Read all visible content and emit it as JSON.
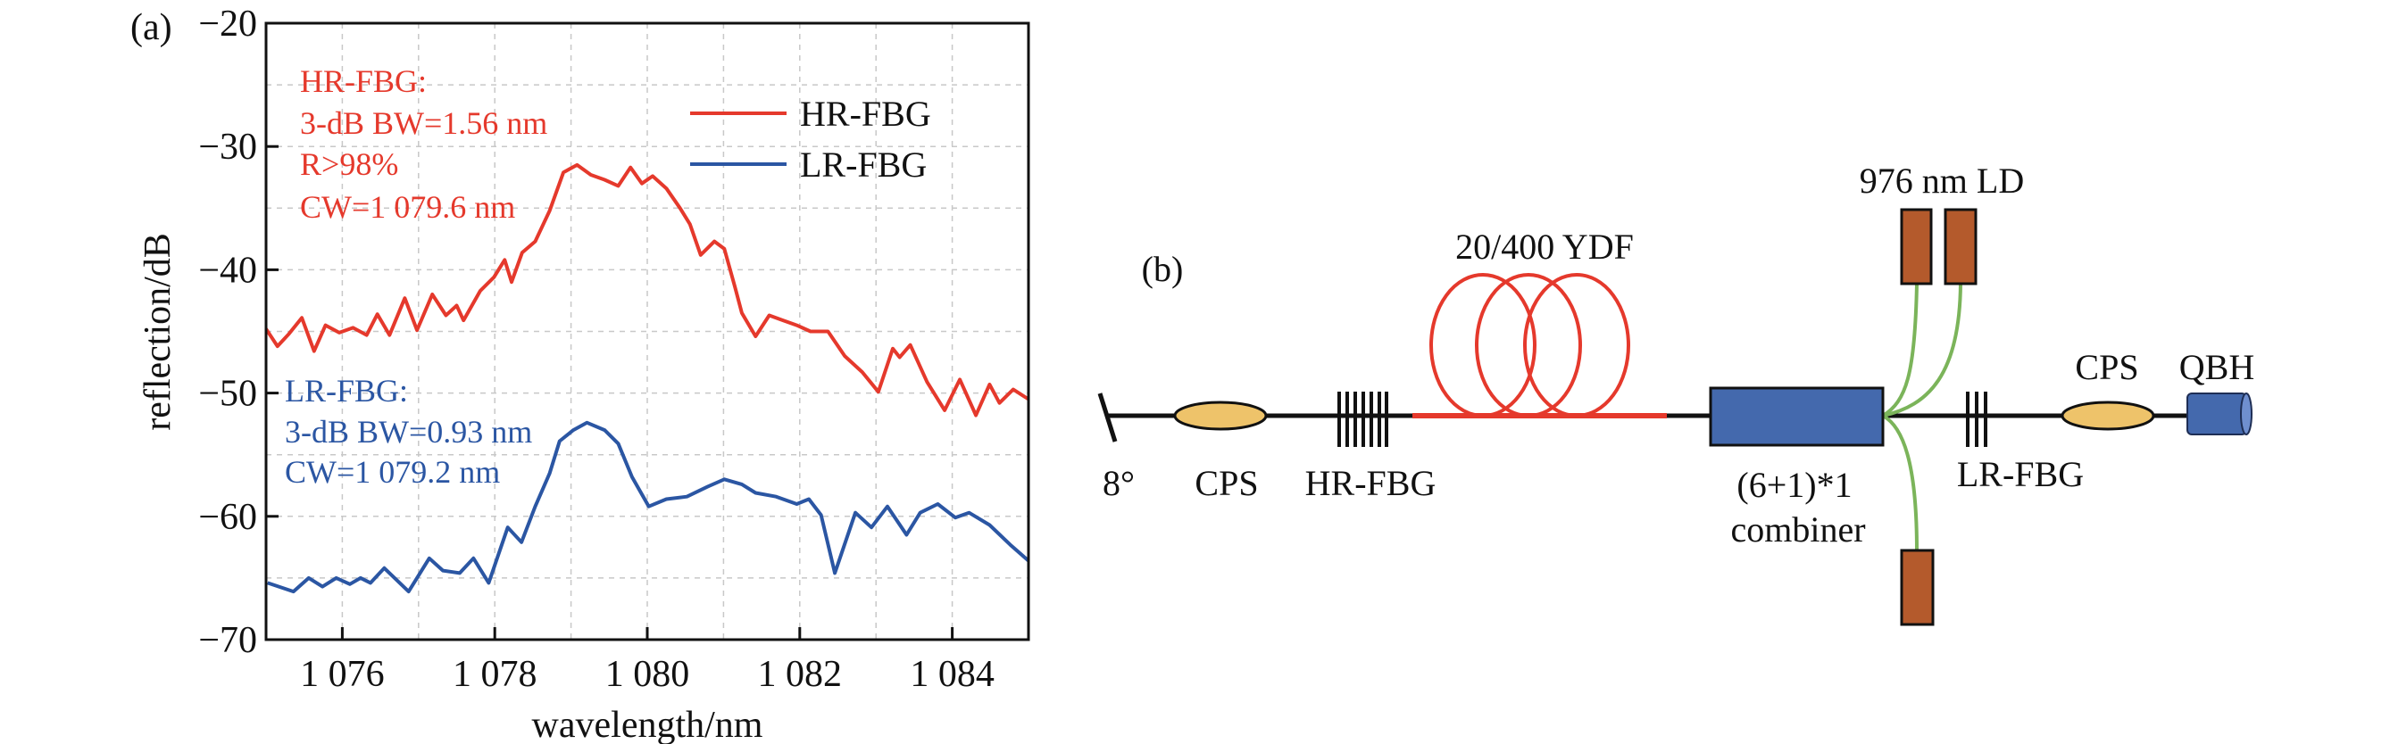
{
  "panel_a_label": "(a)",
  "panel_b_label": "(b)",
  "chart_data": {
    "type": "line",
    "title": "",
    "xlabel": "wavelength/nm",
    "ylabel": "reflection/dB",
    "xlim": [
      1075,
      1085
    ],
    "ylim": [
      -70,
      -20
    ],
    "xticks": [
      1076,
      1078,
      1080,
      1082,
      1084
    ],
    "xtick_labels": [
      "1 076",
      "1 078",
      "1 080",
      "1 082",
      "1 084"
    ],
    "yticks": [
      -20,
      -30,
      -40,
      -50,
      -60,
      -70
    ],
    "ytick_labels": [
      "−20",
      "−30",
      "−40",
      "−50",
      "−60",
      "−70"
    ],
    "grid": true,
    "legend_position": "top-right",
    "series": [
      {
        "name": "HR-FBG",
        "color": "#e5392c",
        "x": [
          1075.0,
          1075.15,
          1075.3,
          1075.47,
          1075.63,
          1075.78,
          1075.96,
          1076.14,
          1076.32,
          1076.46,
          1076.62,
          1076.82,
          1076.98,
          1077.18,
          1077.36,
          1077.5,
          1077.59,
          1077.81,
          1077.99,
          1078.13,
          1078.22,
          1078.36,
          1078.53,
          1078.72,
          1078.9,
          1079.08,
          1079.26,
          1079.44,
          1079.62,
          1079.78,
          1079.93,
          1080.07,
          1080.25,
          1080.43,
          1080.56,
          1080.7,
          1080.88,
          1081.01,
          1081.15,
          1081.24,
          1081.42,
          1081.6,
          1081.78,
          1081.96,
          1082.14,
          1082.37,
          1082.59,
          1082.82,
          1083.03,
          1083.22,
          1083.31,
          1083.45,
          1083.67,
          1083.9,
          1084.1,
          1084.31,
          1084.49,
          1084.62,
          1084.8,
          1085.0
        ],
        "y": [
          -44.8,
          -46.2,
          -45.2,
          -43.9,
          -46.6,
          -44.5,
          -45.1,
          -44.7,
          -45.3,
          -43.6,
          -45.3,
          -42.3,
          -44.9,
          -42.0,
          -43.7,
          -42.9,
          -44.1,
          -41.7,
          -40.6,
          -39.2,
          -41.0,
          -38.6,
          -37.7,
          -35.2,
          -32.1,
          -31.5,
          -32.3,
          -32.7,
          -33.2,
          -31.7,
          -33.0,
          -32.4,
          -33.4,
          -35.0,
          -36.3,
          -38.8,
          -37.7,
          -38.3,
          -41.4,
          -43.5,
          -45.4,
          -43.7,
          -44.1,
          -44.5,
          -45.0,
          -45.0,
          -47.0,
          -48.3,
          -49.9,
          -46.4,
          -47.1,
          -46.1,
          -49.1,
          -51.4,
          -48.9,
          -51.8,
          -49.3,
          -50.8,
          -49.7,
          -50.5
        ]
      },
      {
        "name": "LR-FBG",
        "color": "#2b56a3",
        "x": [
          1075.02,
          1075.36,
          1075.56,
          1075.74,
          1075.92,
          1076.1,
          1076.24,
          1076.37,
          1076.55,
          1076.87,
          1077.14,
          1077.32,
          1077.54,
          1077.72,
          1077.92,
          1078.17,
          1078.35,
          1078.53,
          1078.72,
          1078.85,
          1079.03,
          1079.21,
          1079.44,
          1079.62,
          1079.8,
          1080.02,
          1080.25,
          1080.52,
          1080.79,
          1081.01,
          1081.24,
          1081.42,
          1081.69,
          1081.96,
          1082.12,
          1082.28,
          1082.46,
          1082.73,
          1082.94,
          1083.15,
          1083.4,
          1083.58,
          1083.81,
          1084.04,
          1084.22,
          1084.49,
          1084.76,
          1085.0
        ],
        "y": [
          -65.4,
          -66.1,
          -65.0,
          -65.7,
          -65.0,
          -65.5,
          -65.0,
          -65.4,
          -64.2,
          -66.1,
          -63.4,
          -64.4,
          -64.6,
          -63.4,
          -65.4,
          -60.9,
          -62.1,
          -59.2,
          -56.5,
          -53.9,
          -53.0,
          -52.4,
          -53.0,
          -54.1,
          -56.8,
          -59.2,
          -58.6,
          -58.4,
          -57.6,
          -57.0,
          -57.4,
          -58.1,
          -58.4,
          -59.0,
          -58.6,
          -59.9,
          -64.6,
          -59.7,
          -60.9,
          -59.2,
          -61.5,
          -59.7,
          -59.0,
          -60.1,
          -59.7,
          -60.7,
          -62.3,
          -63.6
        ]
      }
    ],
    "annotations": {
      "hr": [
        "HR-FBG:",
        "3-dB BW=1.56 nm",
        "R>98%",
        "CW=1 079.6 nm"
      ],
      "lr": [
        "LR-FBG:",
        "3-dB BW=0.93 nm",
        "CW=1 079.2 nm"
      ]
    }
  },
  "diagram": {
    "labels": {
      "angle": "8°",
      "cps_left": "CPS",
      "hr_fbg": "HR-FBG",
      "ydf": "20/400 YDF",
      "combiner_line1": "(6+1)*1",
      "combiner_line2": "combiner",
      "ld": "976 nm LD",
      "lr_fbg": "LR-FBG",
      "cps_right": "CPS",
      "qbh": "QBH"
    },
    "colors": {
      "fiber": "#111111",
      "ydf": "#e5392c",
      "cps": "#eec36a",
      "combiner": "#4469ad",
      "ld": "#b45a2c",
      "pump_fiber": "#7bb45a",
      "qbh": "#4469ad"
    }
  }
}
